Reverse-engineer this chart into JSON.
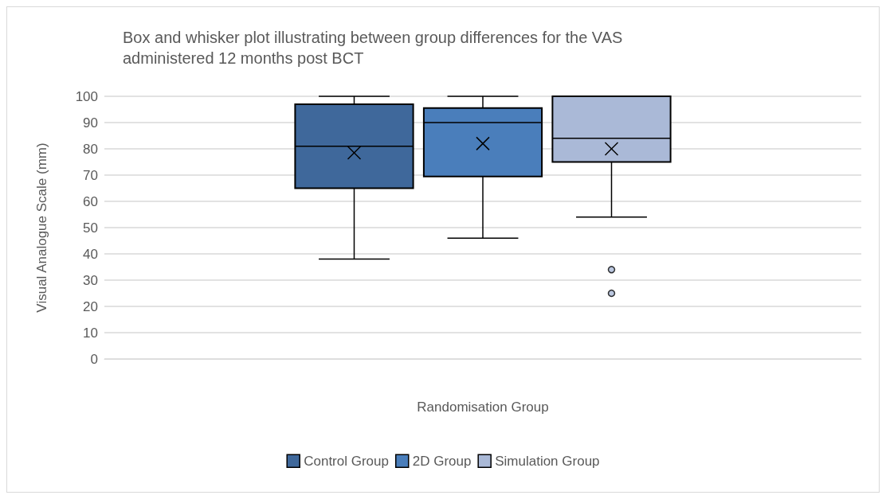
{
  "chart_data": {
    "type": "box",
    "title": "Box and whisker plot illustrating between group differences for the VAS administered 12 months post BCT",
    "xlabel": "Randomisation Group",
    "ylabel": "Visual Analogue Scale (mm)",
    "categories": [
      null
    ],
    "series": [
      {
        "name": "Control Group",
        "color": "#3f689b",
        "boxes": [
          {
            "low": 38,
            "q1": 65,
            "median": 81,
            "q3": 97,
            "high": 100,
            "mean": 78.5
          }
        ]
      },
      {
        "name": "2D Group",
        "color": "#4a7ebb",
        "boxes": [
          {
            "low": 46,
            "q1": 69.5,
            "median": 90,
            "q3": 95.5,
            "high": 100,
            "mean": 82
          }
        ]
      },
      {
        "name": "Simulation Group",
        "color": "#aab9d7",
        "boxes": [
          {
            "low": 54,
            "q1": 75,
            "median": 84,
            "q3": 100,
            "high": 100,
            "mean": 80,
            "outliers": [
              34,
              25
            ]
          }
        ]
      }
    ],
    "ylim": [
      0,
      100
    ],
    "yticks": [
      0,
      10,
      20,
      30,
      40,
      50,
      60,
      70,
      80,
      90,
      100
    ],
    "grid": "y",
    "legend": "bottom"
  }
}
